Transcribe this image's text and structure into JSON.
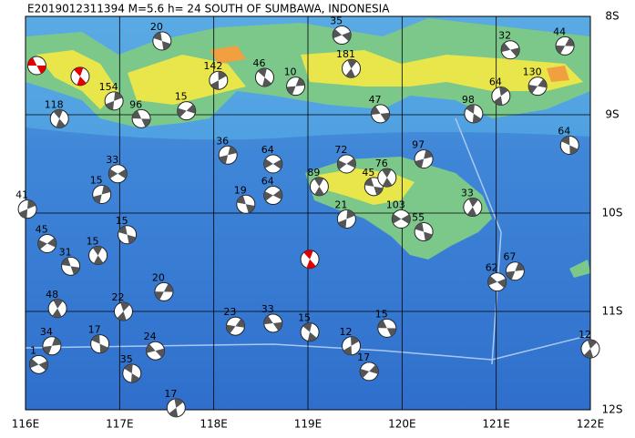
{
  "title": "E2019012311394 M=5.6 h= 24 SOUTH OF SUMBAWA, INDONESIA",
  "lon_ticks": [
    {
      "value": 116,
      "label": "116E"
    },
    {
      "value": 117,
      "label": "117E"
    },
    {
      "value": 118,
      "label": "118E"
    },
    {
      "value": 119,
      "label": "119E"
    },
    {
      "value": 120,
      "label": "120E"
    },
    {
      "value": 121,
      "label": "121E"
    },
    {
      "value": 122,
      "label": "122E"
    }
  ],
  "lat_ticks": [
    {
      "value": 8,
      "label": "8S"
    },
    {
      "value": 9,
      "label": "9S"
    },
    {
      "value": 10,
      "label": "10S"
    },
    {
      "value": 11,
      "label": "11S"
    },
    {
      "value": 12,
      "label": "12S"
    }
  ],
  "events": [
    {
      "lon": 116.12,
      "lat": 8.5,
      "color": "#e00000"
    },
    {
      "lon": 116.58,
      "lat": 8.61,
      "color": "#e00000"
    },
    {
      "lon": 116.02,
      "lat": 9.96,
      "label": "41"
    },
    {
      "lon": 116.23,
      "lat": 10.31,
      "label": "45"
    },
    {
      "lon": 116.48,
      "lat": 10.54,
      "label": "31"
    },
    {
      "lon": 116.77,
      "lat": 10.43,
      "label": "15"
    },
    {
      "lon": 116.81,
      "lat": 9.81,
      "label": "15"
    },
    {
      "lon": 116.98,
      "lat": 9.6,
      "label": "33"
    },
    {
      "lon": 117.08,
      "lat": 10.22,
      "label": "15"
    },
    {
      "lon": 116.34,
      "lat": 10.97,
      "label": "48"
    },
    {
      "lon": 116.28,
      "lat": 11.35,
      "label": "34"
    },
    {
      "lon": 116.14,
      "lat": 11.54,
      "label": "1"
    },
    {
      "lon": 116.79,
      "lat": 11.33,
      "label": "17"
    },
    {
      "lon": 117.04,
      "lat": 11.0,
      "label": "22"
    },
    {
      "lon": 117.47,
      "lat": 10.8,
      "label": "20"
    },
    {
      "lon": 117.38,
      "lat": 11.4,
      "label": "24"
    },
    {
      "lon": 117.13,
      "lat": 11.63,
      "label": "35"
    },
    {
      "lon": 117.6,
      "lat": 11.98,
      "label": "17"
    },
    {
      "lon": 118.23,
      "lat": 11.15,
      "label": "23"
    },
    {
      "lon": 118.63,
      "lat": 11.12,
      "label": "33"
    },
    {
      "lon": 119.02,
      "lat": 11.21,
      "label": "15"
    },
    {
      "lon": 119.46,
      "lat": 11.35,
      "label": "12"
    },
    {
      "lon": 119.65,
      "lat": 11.61,
      "label": "17"
    },
    {
      "lon": 119.84,
      "lat": 11.17,
      "label": "15"
    },
    {
      "lon": 119.02,
      "lat": 10.47,
      "color": "#e00000"
    },
    {
      "lon": 119.41,
      "lat": 10.06,
      "label": "21"
    },
    {
      "lon": 119.41,
      "lat": 9.5,
      "label": "72"
    },
    {
      "lon": 119.7,
      "lat": 9.73,
      "label": "45"
    },
    {
      "lon": 119.84,
      "lat": 9.64,
      "label": "76"
    },
    {
      "lon": 120.23,
      "lat": 9.45,
      "label": "97"
    },
    {
      "lon": 119.99,
      "lat": 10.06,
      "label": "103"
    },
    {
      "lon": 120.23,
      "lat": 10.19,
      "label": "55"
    },
    {
      "lon": 120.75,
      "lat": 9.94,
      "label": "33"
    },
    {
      "lon": 121.2,
      "lat": 10.59,
      "label": "67"
    },
    {
      "lon": 121.01,
      "lat": 10.7,
      "label": "62"
    },
    {
      "lon": 121.78,
      "lat": 9.31,
      "label": "64"
    },
    {
      "lon": 122.0,
      "lat": 11.38,
      "label": "12"
    },
    {
      "lon": 121.73,
      "lat": 8.3,
      "label": "44"
    },
    {
      "lon": 121.15,
      "lat": 8.34,
      "label": "32"
    },
    {
      "lon": 120.76,
      "lat": 8.99,
      "label": "98"
    },
    {
      "lon": 121.05,
      "lat": 8.81,
      "label": "64"
    },
    {
      "lon": 121.44,
      "lat": 8.71,
      "label": "130"
    },
    {
      "lon": 119.77,
      "lat": 8.99,
      "label": "47"
    },
    {
      "lon": 118.54,
      "lat": 8.62,
      "label": "46"
    },
    {
      "lon": 118.05,
      "lat": 8.65,
      "label": "142"
    },
    {
      "lon": 117.71,
      "lat": 8.96,
      "label": "15"
    },
    {
      "lon": 117.23,
      "lat": 9.04,
      "label": "96"
    },
    {
      "lon": 116.36,
      "lat": 9.04,
      "label": "118"
    },
    {
      "lon": 116.94,
      "lat": 8.86,
      "label": "154"
    },
    {
      "lon": 118.63,
      "lat": 9.82,
      "label": "64"
    },
    {
      "lon": 118.34,
      "lat": 9.91,
      "label": "19"
    },
    {
      "lon": 119.12,
      "lat": 9.73,
      "label": "89"
    },
    {
      "lon": 118.15,
      "lat": 9.41,
      "label": "36"
    },
    {
      "lon": 118.63,
      "lat": 9.5,
      "label": "64"
    },
    {
      "lon": 117.45,
      "lat": 8.25,
      "label": "20"
    },
    {
      "lon": 119.46,
      "lat": 8.53,
      "label": "181"
    },
    {
      "lon": 118.87,
      "lat": 8.71,
      "label": "10"
    },
    {
      "lon": 119.36,
      "lat": 8.19,
      "label": "35"
    }
  ]
}
